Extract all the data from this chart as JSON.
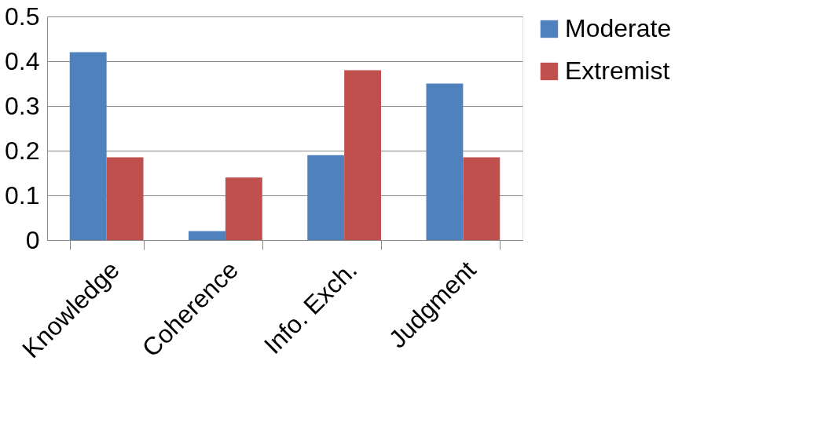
{
  "chart_data": {
    "type": "bar",
    "categories": [
      "Knowledge",
      "Coherence",
      "Info. Exch.",
      "Judgment"
    ],
    "series": [
      {
        "name": "Moderate",
        "color": "#4f81bd",
        "values": [
          0.42,
          0.02,
          0.19,
          0.35
        ]
      },
      {
        "name": "Extremist",
        "color": "#c0504d",
        "values": [
          0.185,
          0.14,
          0.38,
          0.185
        ]
      }
    ],
    "ylim": [
      0,
      0.5
    ],
    "yticks": [
      0,
      0.1,
      0.2,
      0.3,
      0.4,
      0.5
    ],
    "grid": "y",
    "legend": "right"
  }
}
